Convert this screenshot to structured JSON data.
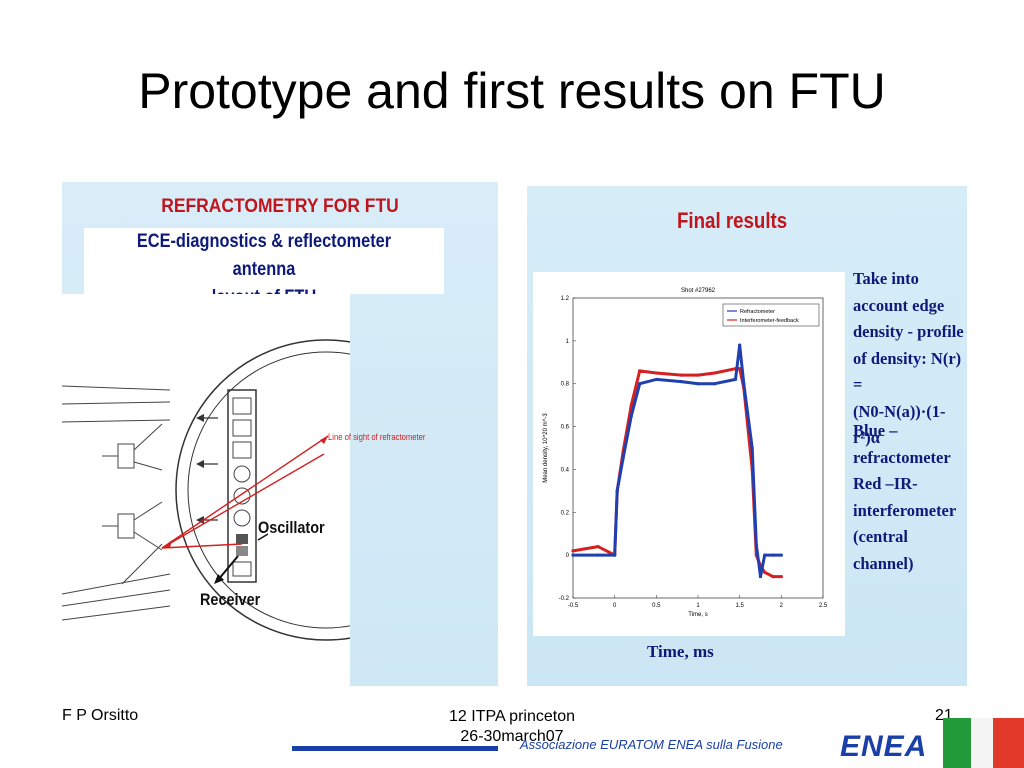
{
  "slide": {
    "title": "Prototype and first results on FTU"
  },
  "left_panel": {
    "heading": "REFRACTOMETRY FOR FTU",
    "caption_line1": "ECE-diagnostics & reflectometer antenna",
    "caption_line2": "layout of FTU",
    "labels": {
      "line_of_sight": "Line of sight of refractometer",
      "oscillator": "Oscillator",
      "receiver": "Receiver"
    }
  },
  "right_panel": {
    "heading": "Final results",
    "x_axis_title": "Time, ms",
    "note1": [
      "Take into",
      "account edge",
      "density - profile",
      "of density: N(r) =",
      "(N0-N(a))·(1-r²)α"
    ],
    "note2": [
      "Blue –",
      "refractometer",
      "Red –IR-",
      "interferometer",
      "(central channel)"
    ]
  },
  "chart_data": {
    "type": "line",
    "title": "Shot #27962",
    "xlabel": "Time, s",
    "ylabel": "Mean density, 10^20 m^-3",
    "xlim": [
      -0.5,
      2.5
    ],
    "ylim": [
      -0.2,
      1.2
    ],
    "xticks": [
      "-0.5",
      "0",
      "0.5",
      "1",
      "1.5",
      "2",
      "2.5"
    ],
    "yticks": [
      "-0.2",
      "0",
      "0.2",
      "0.4",
      "0.6",
      "0.8",
      "1",
      "1.2"
    ],
    "legend_position": "top-right",
    "series": [
      {
        "name": "Refractometer",
        "color": "#2140b0",
        "x": [
          -0.5,
          -0.2,
          0.0,
          0.03,
          0.1,
          0.2,
          0.3,
          0.5,
          0.8,
          1.0,
          1.2,
          1.45,
          1.5,
          1.55,
          1.65,
          1.7,
          1.75,
          1.8,
          1.9,
          2.0
        ],
        "y": [
          0.0,
          0.0,
          0.0,
          0.3,
          0.45,
          0.65,
          0.8,
          0.82,
          0.81,
          0.8,
          0.8,
          0.82,
          0.98,
          0.8,
          0.5,
          0.05,
          -0.1,
          0.0,
          0.0,
          0.0
        ]
      },
      {
        "name": "Interferometer-feedback",
        "color": "#d42020",
        "x": [
          -0.5,
          -0.2,
          0.0,
          0.03,
          0.1,
          0.2,
          0.3,
          0.5,
          0.8,
          1.0,
          1.2,
          1.45,
          1.5,
          1.55,
          1.65,
          1.7,
          1.75,
          1.8,
          1.9,
          2.0
        ],
        "y": [
          0.02,
          0.04,
          0.0,
          0.3,
          0.48,
          0.7,
          0.86,
          0.85,
          0.84,
          0.84,
          0.85,
          0.87,
          0.87,
          0.78,
          0.4,
          0.0,
          -0.05,
          -0.08,
          -0.1,
          -0.1
        ]
      }
    ]
  },
  "footer": {
    "author": "F P Orsitto",
    "event_line1": "12 ITPA princeton",
    "event_line2": "26-30march07",
    "page_number": "21",
    "association": "Associazione EURATOM ENEA sulla Fusione",
    "logo": "ENEA"
  },
  "colors": {
    "heading_red": "#c0151d",
    "text_navy": "#0d1a7a",
    "brand_blue": "#1a3fa8"
  }
}
